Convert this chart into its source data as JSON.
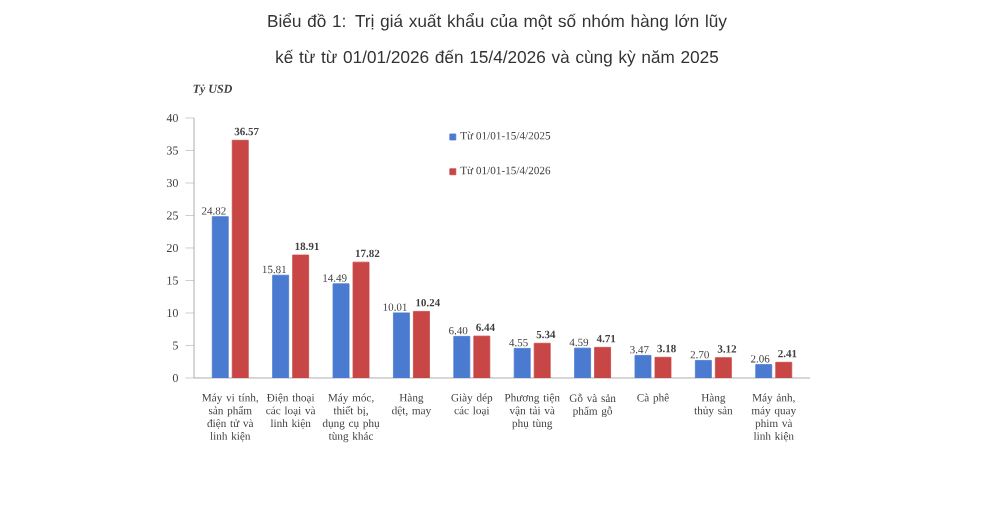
{
  "chart_data": {
    "type": "bar",
    "title": "Biểu đồ 1: Trị giá xuất khẩu của một số nhóm hàng lớn lũy kế từ từ 01/01/2026 đến 15/4/2026 và cùng kỳ năm 2025",
    "ylabel": "Tỷ USD",
    "categories": [
      "Máy vi tính, sản phẩm điện tử và linh kiện",
      "Điện thoại các loại và linh kiện",
      "Máy móc, thiết bị, dụng cụ phụ tùng khác",
      "Hàng dệt, may",
      "Giày dép các loại",
      "Phương tiện vận tải và phụ tùng",
      "Gỗ và sản phẩm gỗ",
      "Cà phê",
      "Hàng thủy sản",
      "Máy ảnh, máy quay phim và linh kiện"
    ],
    "series": [
      {
        "name": "Từ 01/01-15/4/2025",
        "color": "#4a7bd0",
        "values": [
          24.82,
          15.81,
          14.49,
          10.01,
          6.4,
          4.55,
          4.59,
          3.47,
          2.7,
          2.06
        ],
        "value_labels": [
          "24.82",
          "15.81",
          "14.49",
          "10.01",
          "6.40",
          "4.55",
          "4.59",
          "3.47",
          "2.70",
          "2.06"
        ]
      },
      {
        "name": "Từ 01/01-15/4/2026",
        "color": "#c84646",
        "values": [
          36.57,
          18.91,
          17.82,
          10.24,
          6.44,
          5.34,
          4.71,
          3.18,
          3.12,
          2.41
        ],
        "value_labels": [
          "**36.57**",
          "**18.91**",
          "**17.82**",
          "**10.24**",
          "**6.44**",
          "**5.34**",
          "**4.71**",
          "**3.18**",
          "**3.12**",
          "**2.41**"
        ]
      }
    ],
    "ylim": [
      0,
      40
    ],
    "yticks": [
      0,
      5,
      10,
      15,
      20,
      25,
      30,
      35,
      40
    ],
    "legend": "top"
  }
}
